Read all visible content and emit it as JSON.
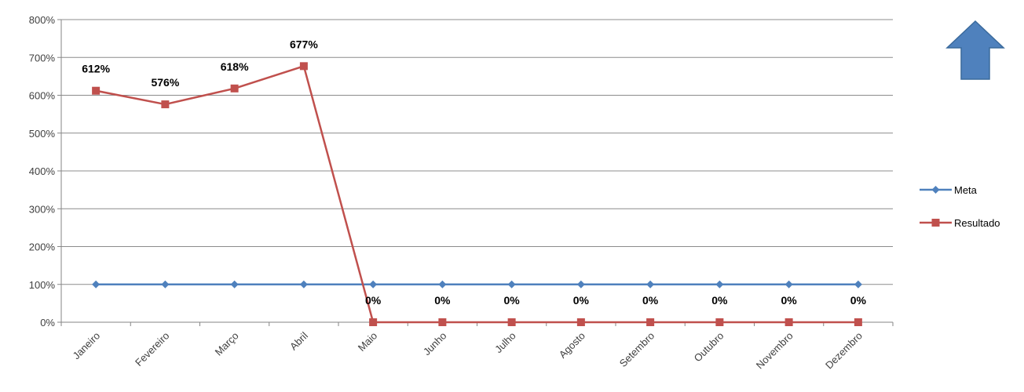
{
  "chart_data": {
    "type": "line",
    "categories": [
      "Janeiro",
      "Fevereiro",
      "Março",
      "Abril",
      "Maio",
      "Junho",
      "Julho",
      "Agosto",
      "Setembro",
      "Outubro",
      "Novembro",
      "Dezembro"
    ],
    "series": [
      {
        "name": "Meta",
        "values": [
          100,
          100,
          100,
          100,
          100,
          100,
          100,
          100,
          100,
          100,
          100,
          100
        ],
        "color": "#4F81BD",
        "marker": "diamond"
      },
      {
        "name": "Resultado",
        "values": [
          612,
          576,
          618,
          677,
          0,
          0,
          0,
          0,
          0,
          0,
          0,
          0
        ],
        "labels": [
          "612%",
          "576%",
          "618%",
          "677%",
          "0%",
          "0%",
          "0%",
          "0%",
          "0%",
          "0%",
          "0%",
          "0%"
        ],
        "color": "#C0504D",
        "marker": "square"
      }
    ],
    "y_ticks": [
      "0%",
      "100%",
      "200%",
      "300%",
      "400%",
      "500%",
      "600%",
      "700%",
      "800%"
    ],
    "ylim": [
      0,
      800
    ],
    "grid": true,
    "legend_position": "right",
    "title": "",
    "xlabel": "",
    "ylabel": ""
  },
  "indicator": {
    "icon": "up-arrow-icon",
    "color": "#4F81BD"
  }
}
